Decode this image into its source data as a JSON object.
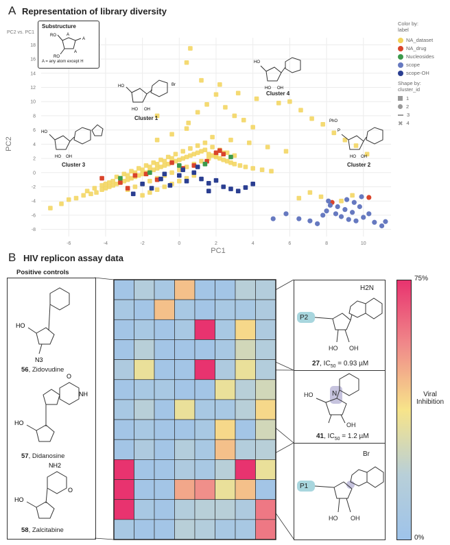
{
  "panel_a": {
    "letter": "A",
    "title": "Representation of library diversity",
    "small_axis_note": "PC2 vs. PC1",
    "substructure_box": {
      "title": "Substructure",
      "note": "A = any atom except H",
      "glyphs": [
        "RO",
        "RO",
        "A",
        "A",
        "A"
      ]
    },
    "cluster_labels": [
      "Cluster 1",
      "Cluster 2",
      "Cluster 3",
      "Cluster 4"
    ],
    "chem_text": {
      "br": "Br",
      "n": "N",
      "nh": "NH",
      "ho": "HO",
      "oh": "OH",
      "o": "O",
      "pho": "PhO",
      "p": "P"
    },
    "legend": {
      "color_title": "Color by:",
      "color_sub": "label",
      "colors": [
        {
          "name": "NA_dataset",
          "color": "#f2d35b"
        },
        {
          "name": "NA_drug",
          "color": "#d9442b"
        },
        {
          "name": "Nucleosides",
          "color": "#3d9a4d"
        },
        {
          "name": "scope",
          "color": "#6679c0"
        },
        {
          "name": "scope-OH",
          "color": "#2a3e91"
        }
      ],
      "shape_title": "Shape by:",
      "shape_sub": "cluster_id",
      "shapes": [
        "1",
        "2",
        "3",
        "4"
      ]
    }
  },
  "chart_data": [
    {
      "type": "scatter",
      "xlabel": "PC1",
      "ylabel": "PC2",
      "xlim": [
        -7.5,
        11.5
      ],
      "ylim": [
        -9,
        19
      ],
      "x_ticks": [
        -6,
        -4,
        -2,
        0,
        2,
        4,
        6,
        8,
        10
      ],
      "y_ticks": [
        -8,
        -6,
        -4,
        -2,
        0,
        2,
        4,
        6,
        8,
        10,
        12,
        14,
        16,
        18
      ],
      "grid": true,
      "series": [
        {
          "name": "NA_dataset",
          "color": "#f2d35b",
          "x": [
            -7,
            -6.4,
            -6,
            -5.6,
            -5.2,
            -4.8,
            -4.5,
            -4.2,
            -4,
            -3.8,
            -3.6,
            -3.4,
            -3.2,
            -3,
            -2.8,
            -2.6,
            -2.4,
            -2.2,
            -2,
            -1.8,
            -1.6,
            -1.4,
            -1.2,
            -1,
            -0.8,
            -0.6,
            -0.4,
            -0.2,
            0,
            0.2,
            0.4,
            0.6,
            0.8,
            1,
            1.2,
            1.4,
            1.6,
            1.8,
            2,
            2.2,
            2.4,
            2.6,
            2.8,
            3,
            3.3,
            3.6,
            4,
            4.5,
            5,
            -3.4,
            -3,
            -2.6,
            -2.2,
            -1.8,
            -1.4,
            -1,
            -0.6,
            -0.2,
            0.2,
            0.6,
            1,
            1.4,
            1.8,
            2.2,
            2.6,
            3,
            -2.8,
            -2.4,
            -2,
            -1.6,
            -1.2,
            -0.8,
            -0.4,
            0,
            0.4,
            0.8,
            1.2,
            1.6,
            2,
            2.4,
            -2,
            -1.6,
            -1.2,
            -0.8,
            -0.4,
            0,
            0.4,
            0.8,
            -1.2,
            -0.4,
            0.4,
            -4,
            -3.6,
            -3.2,
            -2.8,
            -2.4,
            -2,
            -1.6,
            -1.2,
            -0.8,
            -0.4,
            -5,
            -4.6,
            -4.2,
            -3.8,
            0.5,
            1,
            1.5,
            2,
            2.5,
            3,
            3.5,
            4,
            1.2,
            2.2,
            3.2,
            4.2,
            5.4,
            6,
            6.6,
            7.2,
            7.8,
            8.4,
            9,
            9.6,
            10.2,
            1.8,
            2.8,
            3.8,
            4.8,
            5.8,
            0.6,
            -1.2,
            0.4,
            8.8,
            9.4,
            6.5,
            7.1,
            7.7
          ],
          "y": [
            -5,
            -4.4,
            -3.8,
            -3.6,
            -3.2,
            -3,
            -2.8,
            -2.4,
            -2.2,
            -2,
            -1.8,
            -1.6,
            -1.4,
            -1.2,
            -1,
            -0.8,
            -0.6,
            -0.4,
            -0.2,
            0,
            0.2,
            0.4,
            0.6,
            0.8,
            1,
            1.2,
            1.4,
            1.6,
            1.8,
            2,
            2.2,
            2.4,
            2.6,
            2.8,
            3,
            3.2,
            2.6,
            2.4,
            2.2,
            2,
            1.8,
            1.6,
            1.4,
            1.2,
            1,
            0.8,
            0.6,
            0.4,
            0.2,
            -0.6,
            -0.2,
            0.2,
            0.6,
            1,
            1.4,
            1.8,
            2.2,
            2.6,
            3,
            3.4,
            3.8,
            4.2,
            3.6,
            3.2,
            2.8,
            2.4,
            -2.4,
            -2,
            -1.6,
            -1.2,
            -0.8,
            -0.4,
            0,
            0.4,
            0.8,
            1.2,
            1.6,
            2,
            2.4,
            2.8,
            -3.2,
            -2.8,
            -2.4,
            -2,
            -1.6,
            -1.2,
            -0.8,
            -0.4,
            4.6,
            5.4,
            6.2,
            -1.6,
            -1.2,
            -0.8,
            -0.4,
            0,
            0.4,
            0.8,
            1.2,
            1.6,
            2,
            -2.6,
            -2.2,
            -1.8,
            -1.4,
            7,
            8.5,
            9.6,
            11,
            9.2,
            8,
            7.4,
            6.4,
            13,
            12.4,
            11.2,
            10.4,
            9.8,
            10,
            8.8,
            7.6,
            6.8,
            5.6,
            4.6,
            3.8,
            2.6,
            5,
            4.6,
            4.2,
            3.6,
            3,
            17.5,
            8,
            15.5,
            -4,
            -3.2,
            -3.6,
            -2.8,
            -3.4
          ]
        },
        {
          "name": "NA_drug",
          "color": "#d9442b",
          "x": [
            -4.2,
            -3.2,
            -2.4,
            -1.8,
            -1.2,
            -0.4,
            0.2,
            0.8,
            1.5,
            2,
            2.2,
            2.4,
            -2.8,
            8.3,
            10.3
          ],
          "y": [
            -0.8,
            -1.4,
            -0.4,
            -0.2,
            -1,
            1.4,
            0.6,
            1,
            1.6,
            2.8,
            3.1,
            2.6,
            -2.2,
            -4.2,
            -3.5
          ]
        },
        {
          "name": "Nucleosides",
          "color": "#3d9a4d",
          "x": [
            -1.6,
            0,
            1.4,
            2.8,
            -3.2
          ],
          "y": [
            0,
            1,
            1.2,
            2.2,
            -0.8
          ]
        },
        {
          "name": "scope",
          "color": "#6679c0",
          "x": [
            5.1,
            5.8,
            6.5,
            7.1,
            7.5,
            7.8,
            8,
            8.2,
            8.5,
            8.8,
            9,
            9.2,
            9.4,
            9.6,
            9.8,
            10,
            10.3,
            10.6,
            11,
            11.2,
            8.1,
            8.6,
            9.1,
            9.5,
            9.9
          ],
          "y": [
            -6.5,
            -5.8,
            -6.5,
            -6.8,
            -7.2,
            -6,
            -5.4,
            -4.6,
            -5.8,
            -6.2,
            -5.2,
            -6.6,
            -5.6,
            -6.8,
            -4.8,
            -6.3,
            -5.8,
            -7,
            -7.5,
            -6.9,
            -4,
            -4.8,
            -3.8,
            -4.2,
            -3.4
          ]
        },
        {
          "name": "scope-OH",
          "color": "#2a3e91",
          "x": [
            -2.5,
            -2,
            -1.5,
            -1,
            -0.5,
            0,
            0.4,
            0.8,
            1.2,
            1.6,
            2,
            2.4,
            2.8,
            3.2,
            3.6,
            4,
            1,
            0.2,
            -0.8,
            1.6
          ],
          "y": [
            -3,
            -1.6,
            -2.2,
            -0.9,
            -1.8,
            -0.4,
            -1.2,
            0,
            -0.9,
            -1.5,
            -1.1,
            -2,
            -2.3,
            -2.6,
            -2.1,
            -1.6,
            0.8,
            0.4,
            -0.2,
            -2.6
          ]
        }
      ]
    },
    {
      "type": "heatmap",
      "title": "HIV replicon assay data",
      "rows": 13,
      "cols": 8,
      "colorbar": {
        "max_label": "75%",
        "min_label": "0%",
        "label": "Viral Inhibition"
      },
      "values": [
        [
          5,
          20,
          10,
          45,
          5,
          5,
          25,
          20
        ],
        [
          10,
          5,
          45,
          10,
          5,
          10,
          10,
          15
        ],
        [
          5,
          10,
          5,
          10,
          75,
          10,
          40,
          15
        ],
        [
          5,
          25,
          5,
          5,
          5,
          10,
          30,
          20
        ],
        [
          15,
          35,
          5,
          5,
          75,
          15,
          35,
          20
        ],
        [
          5,
          10,
          10,
          5,
          5,
          35,
          25,
          30
        ],
        [
          10,
          25,
          5,
          35,
          10,
          10,
          25,
          40
        ],
        [
          5,
          10,
          5,
          5,
          10,
          40,
          5,
          30
        ],
        [
          5,
          15,
          5,
          20,
          10,
          45,
          20,
          25
        ],
        [
          75,
          5,
          5,
          15,
          10,
          25,
          75,
          35
        ],
        [
          75,
          5,
          5,
          50,
          55,
          35,
          45,
          5
        ],
        [
          75,
          10,
          5,
          20,
          25,
          25,
          15,
          60
        ],
        [
          10,
          5,
          5,
          25,
          20,
          10,
          10,
          60
        ]
      ]
    }
  ],
  "panel_b": {
    "letter": "B",
    "title": "HIV replicon assay data",
    "positive_controls_title": "Positive controls",
    "controls": [
      {
        "num": "56",
        "name": ", Zidovudine"
      },
      {
        "num": "57",
        "name": ", Didanosine"
      },
      {
        "num": "58",
        "name": ", Zalcitabine"
      }
    ],
    "control_groups": [
      "HO",
      "N3",
      "NH2",
      "O",
      "N",
      "NH"
    ],
    "compounds": [
      {
        "num": "27",
        "ic50": ", IC",
        "sub": "50",
        "val": " = 0.93 µM",
        "prefix": "P2",
        "top": "H2N",
        "oh1": "HO",
        "oh2": "OH"
      },
      {
        "num": "41",
        "ic50": ", IC",
        "sub": "50",
        "val": " = 1.2 µM",
        "prefix": "",
        "top": "N",
        "oh1": "HO",
        "oh2": "OH"
      },
      {
        "num": "",
        "ic50": "",
        "sub": "",
        "val": "",
        "prefix": "P1",
        "top": "Br",
        "oh1": "HO",
        "oh2": "OH"
      }
    ]
  }
}
